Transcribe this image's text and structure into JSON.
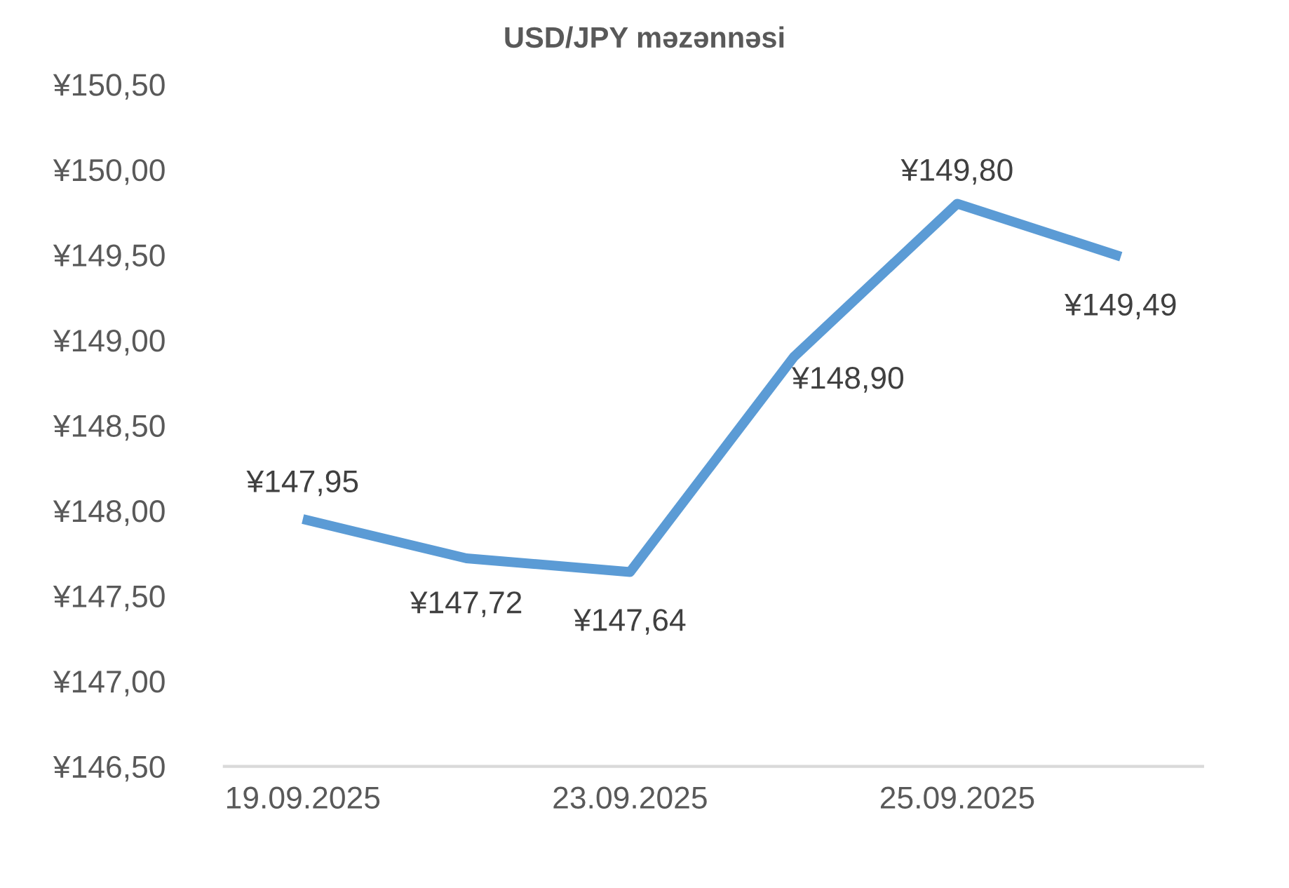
{
  "chart_data": {
    "type": "line",
    "title": "USD/JPY məzənnəsi",
    "categories": [
      "19.09.2025",
      null,
      "23.09.2025",
      null,
      "25.09.2025",
      null
    ],
    "series": [
      {
        "color": "#5b9bd5",
        "values": [
          147.95,
          147.72,
          147.64,
          148.9,
          149.8,
          149.49
        ],
        "value_labels": [
          "¥147,95",
          "¥147,72",
          "¥147,64",
          "¥148,90",
          "¥149,80",
          "¥149,49"
        ]
      }
    ],
    "ylim": [
      146.5,
      150.5
    ],
    "yticks": [
      {
        "value": 146.5,
        "label": "¥146,50"
      },
      {
        "value": 147.0,
        "label": "¥147,00"
      },
      {
        "value": 147.5,
        "label": "¥147,50"
      },
      {
        "value": 148.0,
        "label": "¥148,00"
      },
      {
        "value": 148.5,
        "label": "¥148,50"
      },
      {
        "value": 149.0,
        "label": "¥149,00"
      },
      {
        "value": 149.5,
        "label": "¥149,50"
      },
      {
        "value": 150.0,
        "label": "¥150,00"
      },
      {
        "value": 150.5,
        "label": "¥150,50"
      }
    ],
    "grid": false,
    "legend": false,
    "marker": "none",
    "line_style": "solid"
  }
}
